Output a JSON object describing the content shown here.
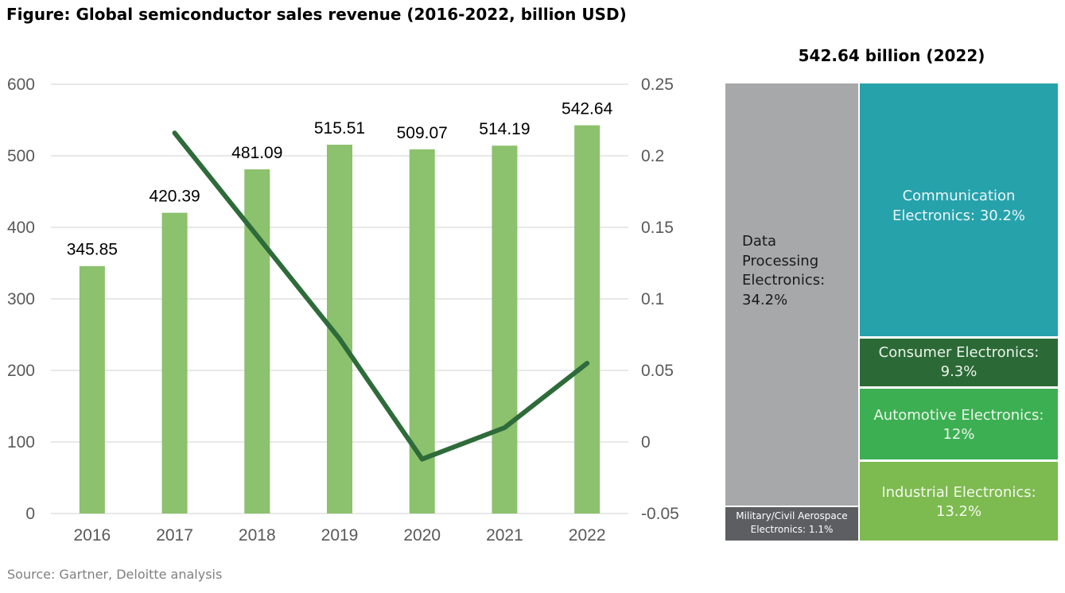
{
  "title": "Figure: Global semiconductor sales revenue (2016-2022, billion USD)",
  "source": "Source: Gartner, Deloitte analysis",
  "chart_data": [
    {
      "type": "bar",
      "categories": [
        "2016",
        "2017",
        "2018",
        "2019",
        "2020",
        "2021",
        "2022"
      ],
      "values": [
        345.85,
        420.39,
        481.09,
        515.51,
        509.07,
        514.19,
        542.64
      ],
      "data_labels": [
        "345.85",
        "420.39",
        "481.09",
        "515.51",
        "509.07",
        "514.19",
        "542.64"
      ],
      "line_values": [
        null,
        0.216,
        0.144,
        0.072,
        -0.012,
        0.01,
        0.055
      ],
      "ylim": [
        0,
        600
      ],
      "y_ticks": [
        "0",
        "100",
        "200",
        "300",
        "400",
        "500",
        "600"
      ],
      "y2lim": [
        -0.05,
        0.25
      ],
      "y2_ticks": [
        "-0.05",
        "0",
        "0.05",
        "0.1",
        "0.15",
        "0.2",
        "0.25"
      ],
      "grid": true,
      "bar_color": "#8cc16d",
      "line_color": "#2e6b3a"
    },
    {
      "type": "treemap",
      "title": "542.64 billion (2022)",
      "items": [
        {
          "label": "Data Processing Electronics: 34.2%",
          "value": 34.2,
          "color": "#a7a8aa"
        },
        {
          "label": "Communication Electronics: 30.2%",
          "value": 30.2,
          "color": "#26a2ab"
        },
        {
          "label": "Consumer Electronics: 9.3%",
          "value": 9.3,
          "color": "#2b6a36"
        },
        {
          "label": "Automotive Electronics: 12%",
          "value": 12,
          "color": "#3daf53"
        },
        {
          "label": "Industrial Electronics: 13.2%",
          "value": 13.2,
          "color": "#7dba4f"
        },
        {
          "label": "Military/Civil Aerospace Electronics: 1.1%",
          "value": 1.1,
          "color": "#5d5e62"
        }
      ]
    }
  ]
}
